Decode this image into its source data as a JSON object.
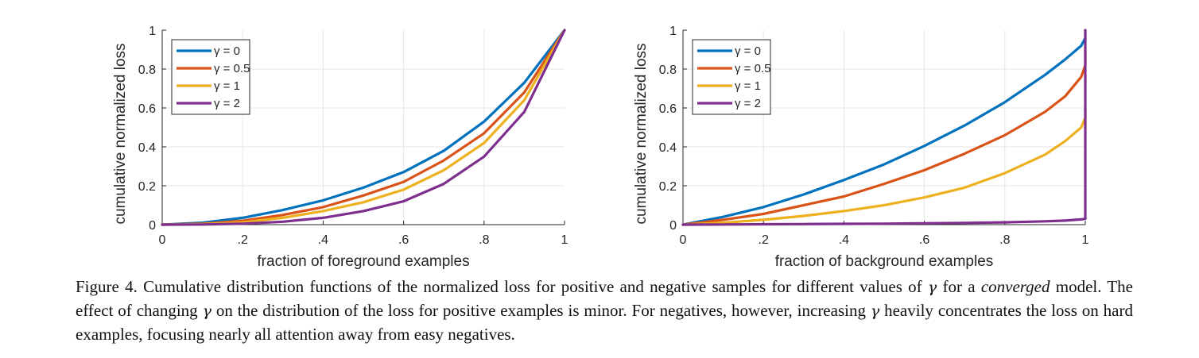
{
  "chart_data": [
    {
      "type": "line",
      "xlabel": "fraction of foreground examples",
      "ylabel": "cumulative normalized loss",
      "xlim": [
        0,
        1
      ],
      "ylim": [
        0,
        1
      ],
      "xticks": [
        0,
        0.2,
        0.4,
        0.6,
        0.8,
        1
      ],
      "xtick_labels": [
        "0",
        ".2",
        ".4",
        ".6",
        ".8",
        "1"
      ],
      "yticks": [
        0,
        0.2,
        0.4,
        0.6,
        0.8,
        1
      ],
      "ytick_labels": [
        "0",
        "0.2",
        "0.4",
        "0.6",
        "0.8",
        "1"
      ],
      "grid": true,
      "legend_position": "top-left",
      "x": [
        0,
        0.1,
        0.2,
        0.3,
        0.4,
        0.5,
        0.6,
        0.7,
        0.8,
        0.9,
        1.0
      ],
      "series": [
        {
          "name": "γ = 0",
          "color": "#0072BD",
          "values": [
            0,
            0.01,
            0.035,
            0.075,
            0.125,
            0.19,
            0.27,
            0.38,
            0.53,
            0.73,
            1
          ]
        },
        {
          "name": "γ = 0.5",
          "color": "#D95319",
          "values": [
            0,
            0.005,
            0.02,
            0.05,
            0.09,
            0.15,
            0.22,
            0.33,
            0.47,
            0.68,
            1
          ]
        },
        {
          "name": "γ = 1",
          "color": "#EDB120",
          "values": [
            0,
            0.003,
            0.012,
            0.035,
            0.07,
            0.115,
            0.18,
            0.28,
            0.42,
            0.64,
            1
          ]
        },
        {
          "name": "γ = 2",
          "color": "#7E2F8E",
          "values": [
            0,
            0.001,
            0.005,
            0.015,
            0.035,
            0.07,
            0.12,
            0.21,
            0.35,
            0.58,
            1
          ]
        }
      ]
    },
    {
      "type": "line",
      "xlabel": "fraction of background examples",
      "ylabel": "cumulative normalized loss",
      "xlim": [
        0,
        1
      ],
      "ylim": [
        0,
        1
      ],
      "xticks": [
        0,
        0.2,
        0.4,
        0.6,
        0.8,
        1
      ],
      "xtick_labels": [
        "0",
        ".2",
        ".4",
        ".6",
        ".8",
        "1"
      ],
      "yticks": [
        0,
        0.2,
        0.4,
        0.6,
        0.8,
        1
      ],
      "ytick_labels": [
        "0",
        "0.2",
        "0.4",
        "0.6",
        "0.8",
        "1"
      ],
      "grid": true,
      "legend_position": "top-left",
      "x": [
        0,
        0.1,
        0.2,
        0.3,
        0.4,
        0.5,
        0.6,
        0.7,
        0.8,
        0.9,
        0.95,
        0.99,
        1.0,
        1.0
      ],
      "series": [
        {
          "name": "γ = 0",
          "color": "#0072BD",
          "values": [
            0,
            0.04,
            0.09,
            0.155,
            0.23,
            0.31,
            0.405,
            0.51,
            0.63,
            0.77,
            0.85,
            0.92,
            0.96,
            1
          ]
        },
        {
          "name": "γ = 0.5",
          "color": "#D95319",
          "values": [
            0,
            0.025,
            0.055,
            0.1,
            0.145,
            0.21,
            0.28,
            0.365,
            0.46,
            0.58,
            0.66,
            0.76,
            0.82,
            0.9
          ]
        },
        {
          "name": "γ = 1",
          "color": "#EDB120",
          "values": [
            0,
            0.01,
            0.025,
            0.045,
            0.07,
            0.1,
            0.14,
            0.19,
            0.265,
            0.36,
            0.43,
            0.5,
            0.55,
            0.6
          ]
        },
        {
          "name": "γ = 2",
          "color": "#7E2F8E",
          "values": [
            0,
            0.001,
            0.002,
            0.003,
            0.004,
            0.005,
            0.007,
            0.009,
            0.012,
            0.017,
            0.021,
            0.027,
            0.03,
            1
          ]
        }
      ]
    }
  ],
  "caption": {
    "label": "Figure 4.",
    "part1": " Cumulative distribution functions of the normalized loss for positive and negative samples for different values of ",
    "gamma": "γ",
    "part2": " for a ",
    "emphasis": "converged",
    "part3": " model. The effect of changing ",
    "part4": " on the distribution of the loss for positive examples is minor. For negatives, however, increasing ",
    "part5": " heavily concentrates the loss on hard examples, focusing nearly all attention away from easy negatives."
  }
}
